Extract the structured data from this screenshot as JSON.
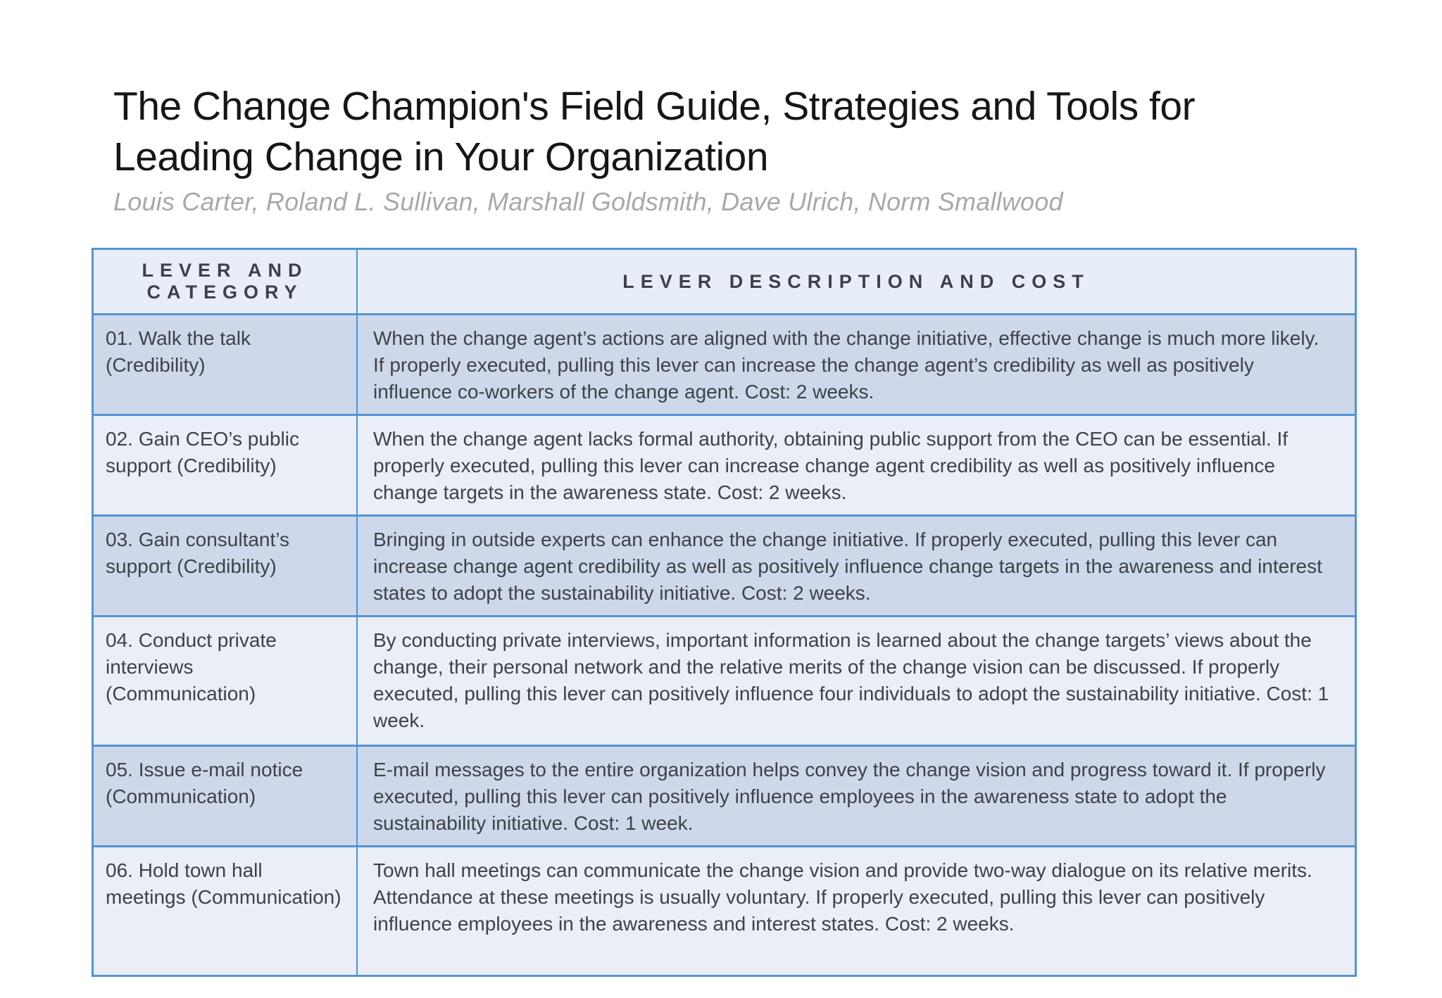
{
  "page": {
    "title_line1": "The Change Champion's Field Guide, Strategies and Tools for",
    "title_line2": "Leading Change in Your Organization",
    "authors": "Louis Carter, Roland L. Sullivan, Marshall Goldsmith, Dave Ulrich, Norm Smallwood"
  },
  "colors": {
    "table_border": "#5494d3",
    "row_shaded": "#cdd8ea",
    "row_plain": "#e9eef7",
    "header_bg": "#e8eef7",
    "body_text": "#3e4248",
    "title_text": "#161616",
    "authors_text": "#a8a8a8"
  },
  "table": {
    "col1_header": "LEVER AND CATEGORY",
    "col2_header": "LEVER DESCRIPTION AND COST",
    "rows": [
      {
        "lever": "01. Walk the talk (Credibility)",
        "description": "When the change agent’s actions are aligned with the change initiative, effective change is much more likely. If properly executed, pulling this lever can increase the change agent’s credibility as well as positively influence co-workers of the change agent. Cost: 2 weeks."
      },
      {
        "lever": "02. Gain CEO’s public support (Credibility)",
        "description": "When the change agent lacks formal authority, obtaining public support from the CEO can be essential. If properly executed, pulling this lever can increase change agent credibility as well as positively influence change targets in the awareness state. Cost: 2 weeks."
      },
      {
        "lever": "03. Gain consultant’s support (Credibility)",
        "description": "Bringing in outside experts can enhance the change initiative. If properly executed, pulling this lever can increase change agent credibility as well as positively influence change targets in the awareness and interest states to adopt the sustainability initiative. Cost: 2 weeks."
      },
      {
        "lever": "04. Conduct private interviews (Communication)",
        "description": "By conducting private interviews, important information is learned about the change targets’ views about the change, their personal network and the relative merits of the change vision can be discussed. If properly executed, pulling this lever can positively influence four individuals to adopt the sustainability initiative. Cost: 1 week."
      },
      {
        "lever": "05. Issue e-mail notice (Communication)",
        "description": "E-mail messages to the entire organization helps convey the change vision and progress toward it. If properly executed, pulling this lever can positively influence employees in the awareness state to adopt the sustainability initiative. Cost: 1 week."
      },
      {
        "lever": "06. Hold town hall meetings (Communication)",
        "description": "Town hall meetings can communicate the change vision and provide two-way dialogue on its relative merits. Attendance at these meetings is usually voluntary. If properly executed, pulling this lever can positively influence employees in the awareness and interest states. Cost: 2 weeks."
      }
    ]
  }
}
